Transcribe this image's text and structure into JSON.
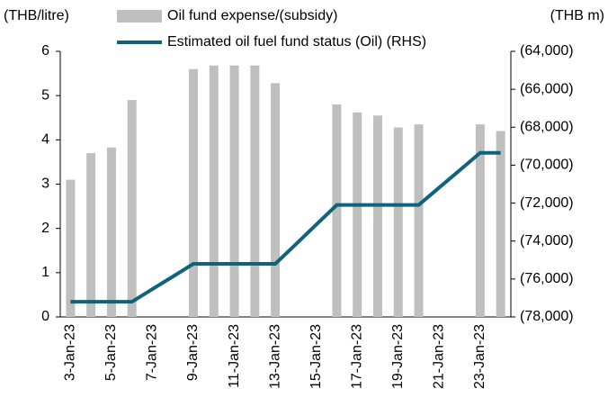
{
  "chart_data": {
    "type": "bar-line",
    "y_label": "(THB/litre)",
    "y2_label": "(THB m)",
    "categories": [
      "3-Jan-23",
      null,
      "5-Jan-23",
      null,
      "7-Jan-23",
      null,
      "9-Jan-23",
      null,
      "11-Jan-23",
      null,
      "13-Jan-23",
      null,
      "15-Jan-23",
      null,
      "17-Jan-23",
      null,
      "19-Jan-23",
      null,
      "21-Jan-23",
      null,
      "23-Jan-23",
      null
    ],
    "series": [
      {
        "name": "Oil fund expense/(subsidy)",
        "color": "#bfbfbf",
        "type": "bar",
        "axis": "y",
        "values": [
          3.1,
          3.7,
          3.83,
          4.9,
          null,
          null,
          5.6,
          5.68,
          5.68,
          5.68,
          5.28,
          null,
          null,
          4.8,
          4.62,
          4.55,
          4.28,
          4.35,
          null,
          null,
          4.35,
          4.2
        ]
      },
      {
        "name": "Estimated oil fuel fund status (Oil) (RHS)",
        "color": "#10637a",
        "type": "line",
        "axis": "y2",
        "values": [
          -77200,
          -77200,
          -77200,
          -77200,
          -76530,
          -75870,
          -75200,
          -75200,
          -75200,
          -75200,
          -75200,
          -74170,
          -73130,
          -72100,
          -72100,
          -72100,
          -72100,
          -72100,
          -71180,
          -70270,
          -69350,
          -69350
        ]
      }
    ],
    "ylim": [
      0,
      6
    ],
    "yticks": [
      0,
      1,
      2,
      3,
      4,
      5,
      6
    ],
    "y2lim": [
      -78000,
      -64000
    ],
    "y2ticks": [
      {
        "value": -78000,
        "label": "(78,000)"
      },
      {
        "value": -76000,
        "label": "(76,000)"
      },
      {
        "value": -74000,
        "label": "(74,000)"
      },
      {
        "value": -72000,
        "label": "(72,000)"
      },
      {
        "value": -70000,
        "label": "(70,000)"
      },
      {
        "value": -68000,
        "label": "(68,000)"
      },
      {
        "value": -66000,
        "label": "(66,000)"
      },
      {
        "value": -64000,
        "label": "(64,000)"
      }
    ],
    "grid": false
  }
}
